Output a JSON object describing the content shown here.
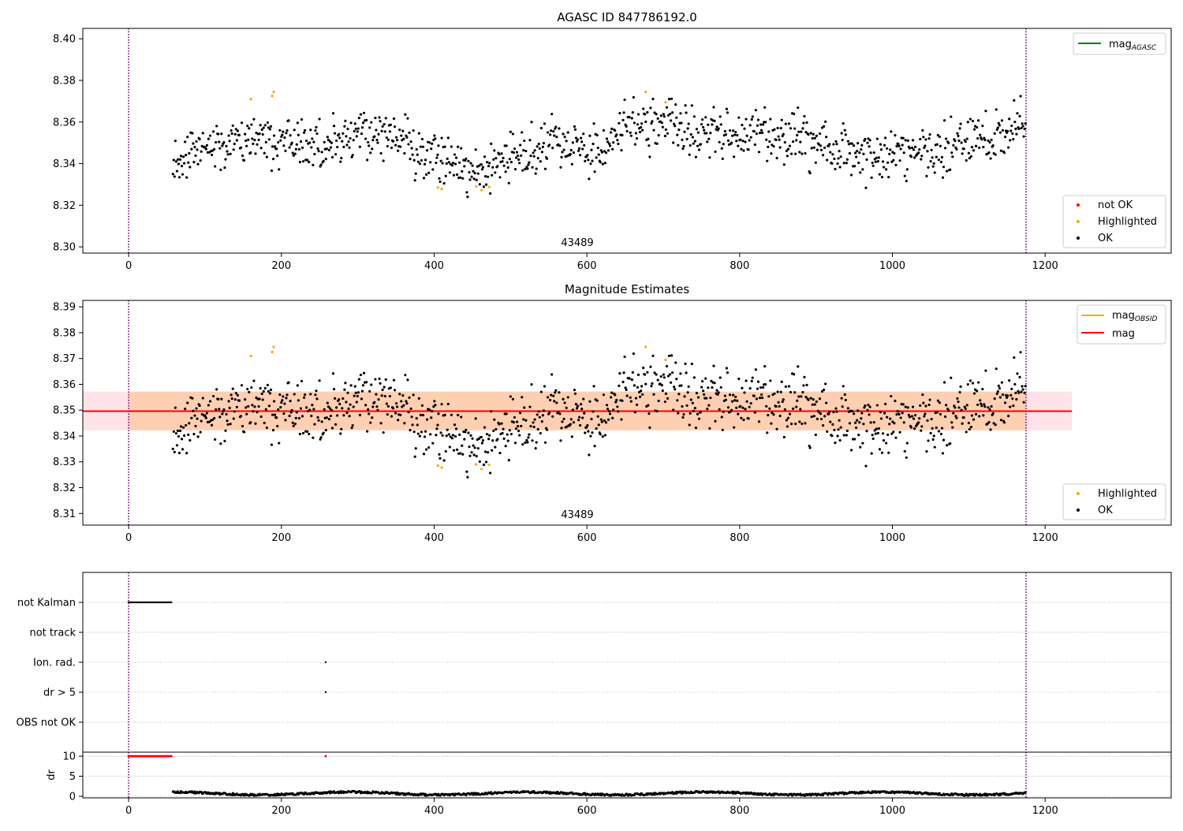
{
  "chart_data": [
    {
      "panel": "mag_agasc",
      "type": "scatter",
      "title": "AGASC ID 847786192.0",
      "xlabel": "",
      "ylabel": "",
      "xlim": [
        -60,
        1365
      ],
      "ylim": [
        8.297,
        8.405
      ],
      "xticks": [
        0,
        200,
        400,
        600,
        800,
        1000,
        1200
      ],
      "xtick_labels": [
        "0",
        "200",
        "400",
        "600",
        "800",
        "1000",
        "1200"
      ],
      "yticks": [
        8.3,
        8.32,
        8.34,
        8.36,
        8.38,
        8.4
      ],
      "ytick_labels": [
        "8.30",
        "8.32",
        "8.34",
        "8.36",
        "8.38",
        "8.40"
      ],
      "vlines": [
        0,
        1175
      ],
      "vline_color": "#800080",
      "obsid_label": "43489",
      "obsid_label_x": 588,
      "legend_lines": [
        {
          "label_base": "mag",
          "label_sub": "AGASC",
          "color": "#008000"
        }
      ],
      "legend_points": [
        {
          "label": "not OK",
          "color": "#ff0000"
        },
        {
          "label": "Highlighted",
          "color": "#ffa500"
        },
        {
          "label": "OK",
          "color": "#000000"
        }
      ],
      "series": [
        {
          "name": "OK",
          "color": "#000000",
          "points": "black_mag"
        },
        {
          "name": "Highlighted",
          "color": "#ffa500",
          "x": [
            160,
            188,
            190,
            405,
            410,
            455,
            462,
            472,
            677,
            703
          ],
          "y": [
            8.371,
            8.3725,
            8.3745,
            8.3285,
            8.3278,
            8.329,
            8.3272,
            8.3288,
            8.3745,
            8.3695
          ]
        }
      ]
    },
    {
      "panel": "magnitude_estimates",
      "type": "scatter",
      "title": "Magnitude Estimates",
      "xlabel": "",
      "ylabel": "",
      "xlim": [
        -60,
        1365
      ],
      "ylim": [
        8.3055,
        8.3925
      ],
      "xticks": [
        0,
        200,
        400,
        600,
        800,
        1000,
        1200
      ],
      "xtick_labels": [
        "0",
        "200",
        "400",
        "600",
        "800",
        "1000",
        "1200"
      ],
      "yticks": [
        8.31,
        8.32,
        8.33,
        8.34,
        8.35,
        8.36,
        8.37,
        8.38,
        8.39
      ],
      "ytick_labels": [
        "8.31",
        "8.32",
        "8.33",
        "8.34",
        "8.35",
        "8.36",
        "8.37",
        "8.38",
        "8.39"
      ],
      "vlines": [
        0,
        1175
      ],
      "vline_color": "#800080",
      "obsid_label": "43489",
      "obsid_label_x": 588,
      "mag_line": 8.3496,
      "mag_band": [
        8.3422,
        8.3572
      ],
      "band_x": [
        -60,
        1235
      ],
      "band_color": "#ffc0cb",
      "obsid_band": [
        0,
        1175
      ],
      "obsid_band_color": "#ffc8a0",
      "legend_lines": [
        {
          "label_base": "mag",
          "label_sub": "OBSID",
          "color": "#ffa500"
        },
        {
          "label_base": "mag",
          "label_sub": "",
          "color": "#ff0000"
        }
      ],
      "legend_points": [
        {
          "label": "Highlighted",
          "color": "#ffa500"
        },
        {
          "label": "OK",
          "color": "#000000"
        }
      ],
      "series": [
        {
          "name": "OK",
          "color": "#000000",
          "points": "black_mag"
        },
        {
          "name": "Highlighted",
          "color": "#ffa500",
          "x": [
            160,
            188,
            190,
            405,
            410,
            455,
            462,
            472,
            677,
            703
          ],
          "y": [
            8.371,
            8.3725,
            8.3745,
            8.3285,
            8.3278,
            8.329,
            8.3272,
            8.3288,
            8.3745,
            8.3695
          ]
        }
      ]
    },
    {
      "panel": "flags",
      "type": "scatter",
      "xlim": [
        -60,
        1365
      ],
      "categories": [
        "not Kalman",
        "not track",
        "Ion. rad.",
        "dr > 5",
        "OBS not OK"
      ],
      "vlines": [
        0,
        1175
      ],
      "vline_color": "#800080",
      "flag_points": [
        {
          "category": "not Kalman",
          "x_range": [
            0,
            57
          ],
          "step": 2
        },
        {
          "category": "Ion. rad.",
          "x": [
            258
          ]
        },
        {
          "category": "dr > 5",
          "x": [
            258
          ]
        }
      ]
    },
    {
      "panel": "dr",
      "type": "scatter",
      "xlim": [
        -60,
        1365
      ],
      "ylim": [
        -0.4,
        11.0
      ],
      "ylabel": "dr",
      "yticks": [
        0,
        5,
        10
      ],
      "ytick_labels": [
        "0",
        "5",
        "10"
      ],
      "xticks": [
        0,
        200,
        400,
        600,
        800,
        1000,
        1200
      ],
      "xtick_labels": [
        "0",
        "200",
        "400",
        "600",
        "800",
        "1000",
        "1200"
      ],
      "vlines": [
        0,
        1175
      ],
      "vline_color": "#800080",
      "clipped_points": {
        "color": "#ff0000",
        "value": 10,
        "x_range": [
          0,
          57
        ],
        "step": 2,
        "extra_x": [
          258
        ]
      },
      "dr_points": {
        "color": "#000000",
        "x_start": 58,
        "x_end": 1175
      }
    }
  ]
}
